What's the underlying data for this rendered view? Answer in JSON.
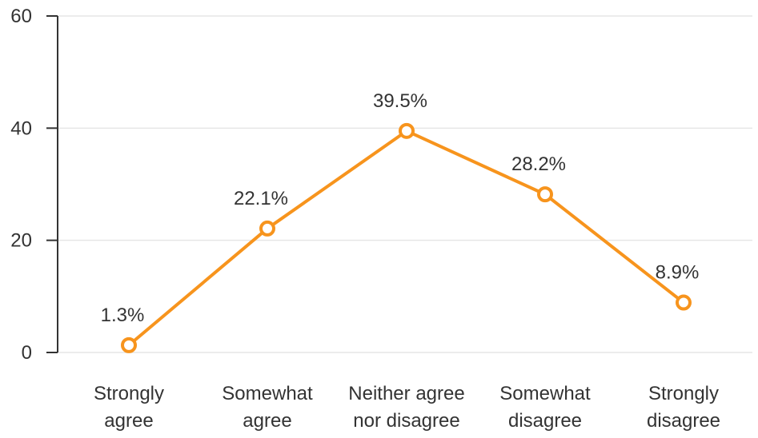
{
  "chart_data": {
    "type": "line",
    "categories": [
      [
        "Strongly",
        "agree"
      ],
      [
        "Somewhat",
        "agree"
      ],
      [
        "Neither agree",
        "nor disagree"
      ],
      [
        "Somewhat",
        "disagree"
      ],
      [
        "Strongly",
        "disagree"
      ]
    ],
    "values": [
      1.3,
      22.1,
      39.5,
      28.2,
      8.9
    ],
    "data_labels": [
      "1.3%",
      "22.1%",
      "39.5%",
      "28.2%",
      "8.9%"
    ],
    "yticks": [
      0,
      20,
      40,
      60
    ],
    "ylim": [
      0,
      60
    ],
    "grid": true,
    "line_color": "#F7941D",
    "marker_fill": "#ffffff",
    "grid_color": "#e6e6e6",
    "axis_color": "#333333"
  }
}
